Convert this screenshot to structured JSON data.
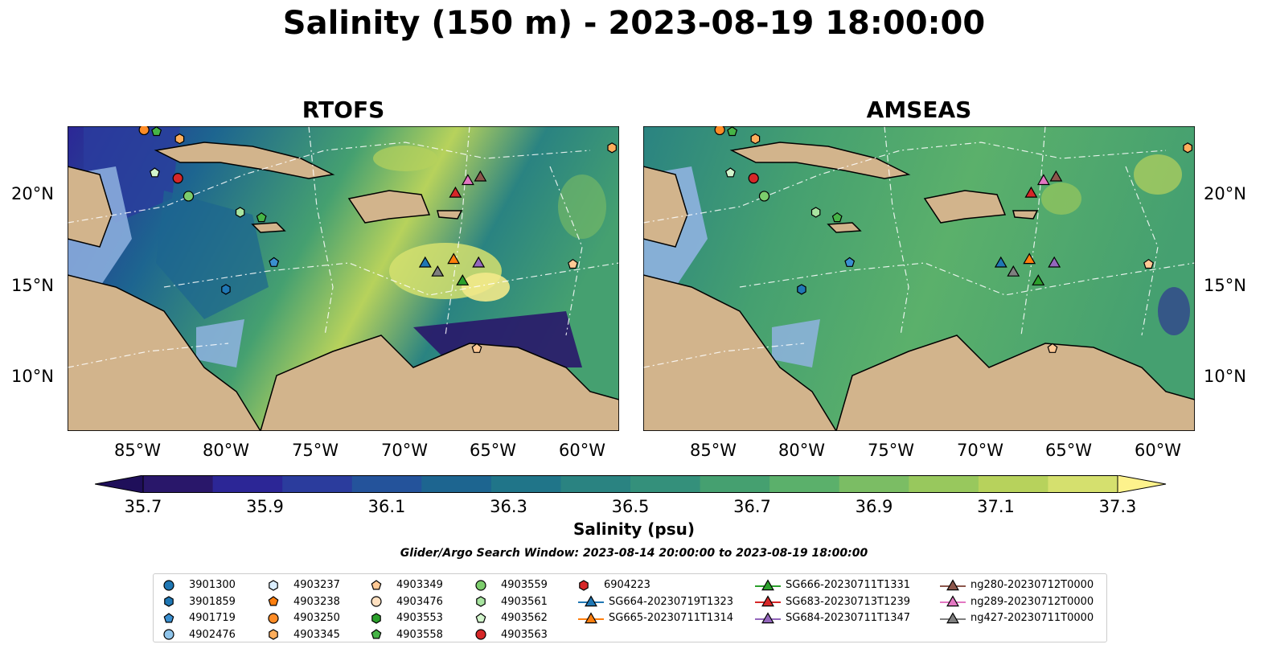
{
  "title": "Salinity (150 m) - 2023-08-19 18:00:00",
  "panels": [
    {
      "title": "RTOFS"
    },
    {
      "title": "AMSEAS"
    }
  ],
  "lat_ticks": [
    "20°N",
    "15°N",
    "10°N"
  ],
  "lon_ticks": [
    "85°W",
    "80°W",
    "75°W",
    "70°W",
    "65°W",
    "60°W"
  ],
  "colorbar": {
    "label": "Salinity (psu)",
    "ticks": [
      "35.7",
      "35.9",
      "36.1",
      "36.3",
      "36.5",
      "36.7",
      "36.9",
      "37.1",
      "37.3"
    ],
    "colors": [
      "#29176a",
      "#2c2696",
      "#2b3c9d",
      "#24539b",
      "#1d6590",
      "#207589",
      "#2a8381",
      "#34907b",
      "#45a070",
      "#5bb06b",
      "#7bbd64",
      "#98c85d",
      "#b7d25c",
      "#d5e06e"
    ]
  },
  "search_window": "Glider/Argo Search Window: 2023-08-14 20:00:00 to 2023-08-19 18:00:00",
  "legend": [
    {
      "label": "3901300",
      "marker": "circle",
      "color": "#1f77b4"
    },
    {
      "label": "3901859",
      "marker": "hexagon",
      "color": "#1f77b4"
    },
    {
      "label": "4901719",
      "marker": "pentagon",
      "color": "#3a8fd0"
    },
    {
      "label": "4902476",
      "marker": "circle",
      "color": "#8fc4ea"
    },
    {
      "label": "4903237",
      "marker": "hexagon",
      "color": "#dbeeff"
    },
    {
      "label": "4903238",
      "marker": "pentagon",
      "color": "#ff7f0e"
    },
    {
      "label": "4903250",
      "marker": "circle",
      "color": "#ff8c26"
    },
    {
      "label": "4903345",
      "marker": "hexagon",
      "color": "#ffae5c"
    },
    {
      "label": "4903349",
      "marker": "pentagon",
      "color": "#ffc995"
    },
    {
      "label": "4903476",
      "marker": "circle",
      "color": "#ffe0c0"
    },
    {
      "label": "4903553",
      "marker": "hexagon",
      "color": "#2ca02c"
    },
    {
      "label": "4903558",
      "marker": "pentagon",
      "color": "#46b446"
    },
    {
      "label": "4903559",
      "marker": "circle",
      "color": "#7ccd6c"
    },
    {
      "label": "4903561",
      "marker": "hexagon",
      "color": "#a8e4a0"
    },
    {
      "label": "4903562",
      "marker": "pentagon",
      "color": "#d2f5cc"
    },
    {
      "label": "4903563",
      "marker": "circle",
      "color": "#d62728"
    },
    {
      "label": "6904223",
      "marker": "hexagon",
      "color": "#d62728"
    },
    {
      "label": "SG664-20230719T1323",
      "marker": "triangle-line",
      "color": "#1f77b4"
    },
    {
      "label": "SG665-20230711T1314",
      "marker": "triangle-line",
      "color": "#ff7f0e"
    },
    {
      "label": "SG666-20230711T1331",
      "marker": "triangle-line",
      "color": "#2ca02c"
    },
    {
      "label": "SG683-20230713T1239",
      "marker": "triangle-line",
      "color": "#d62728"
    },
    {
      "label": "SG684-20230711T1347",
      "marker": "triangle-line",
      "color": "#9467bd"
    },
    {
      "label": "ng280-20230712T0000",
      "marker": "triangle-line",
      "color": "#8c564b"
    },
    {
      "label": "ng289-20230712T0000",
      "marker": "triangle-line",
      "color": "#e377c2"
    },
    {
      "label": "ng427-20230711T0000",
      "marker": "triangle-line",
      "color": "#7f7f7f"
    }
  ],
  "map": {
    "ocean_color": "#8fb3e0",
    "land_color": "#d2b48c",
    "lon_range": [
      -89,
      -58
    ],
    "lat_range": [
      7,
      24
    ],
    "markers": [
      {
        "label": "4903250",
        "lon": -84.7,
        "lat": 23.8
      },
      {
        "label": "4903558",
        "lon": -84.0,
        "lat": 23.7
      },
      {
        "label": "4903345",
        "lon": -82.7,
        "lat": 23.3
      },
      {
        "label": "4903562",
        "lon": -84.1,
        "lat": 21.4
      },
      {
        "label": "4903563",
        "lon": -82.8,
        "lat": 21.1
      },
      {
        "label": "4903559",
        "lon": -82.2,
        "lat": 20.1
      },
      {
        "label": "4903561",
        "lon": -79.3,
        "lat": 19.2
      },
      {
        "label": "4903558",
        "lon": -78.1,
        "lat": 18.9
      },
      {
        "label": "4901719",
        "lon": -77.4,
        "lat": 16.4
      },
      {
        "label": "3901859",
        "lon": -80.1,
        "lat": 14.9
      },
      {
        "label": "4903345",
        "lon": -58.4,
        "lat": 22.8
      },
      {
        "label": "4903349",
        "lon": -66.0,
        "lat": 11.6
      },
      {
        "label": "4903349",
        "lon": -60.6,
        "lat": 16.3
      },
      {
        "label": "SG683-20230713T1239",
        "lon": -67.2,
        "lat": 20.3
      },
      {
        "label": "ng289-20230712T0000",
        "lon": -66.5,
        "lat": 21.0
      },
      {
        "label": "ng280-20230712T0000",
        "lon": -65.8,
        "lat": 21.2
      },
      {
        "label": "SG664-20230719T1323",
        "lon": -68.9,
        "lat": 16.4
      },
      {
        "label": "SG665-20230711T1314",
        "lon": -67.3,
        "lat": 16.6
      },
      {
        "label": "ng427-20230711T0000",
        "lon": -68.2,
        "lat": 15.9
      },
      {
        "label": "SG666-20230711T1331",
        "lon": -66.8,
        "lat": 15.4
      },
      {
        "label": "SG684-20230711T1347",
        "lon": -65.9,
        "lat": 16.4
      }
    ]
  }
}
